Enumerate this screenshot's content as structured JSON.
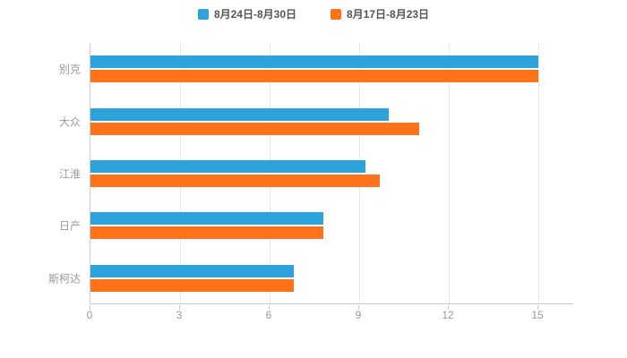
{
  "chart_data": {
    "type": "bar",
    "orientation": "horizontal",
    "title": "",
    "xlabel": "",
    "ylabel": "",
    "categories": [
      "别克",
      "大众",
      "江淮",
      "日产",
      "斯柯达"
    ],
    "series": [
      {
        "name": "8月24日-8月30日",
        "color": "#2DA3DC",
        "values": [
          15,
          10,
          9.2,
          7.8,
          6.8
        ]
      },
      {
        "name": "8月17日-8月23日",
        "color": "#FF7219",
        "values": [
          15,
          11,
          9.7,
          7.8,
          6.8
        ]
      }
    ],
    "xlim": [
      0,
      15
    ],
    "xticks": [
      0,
      3,
      6,
      9,
      12,
      15
    ],
    "legend_position": "top",
    "grid": true
  },
  "colors": {
    "background": "#ffffff",
    "axis_line": "#cccccc",
    "gridline": "#e8e8e8",
    "tick_label": "#999999",
    "category_label": "#999999",
    "legend_label": "#555555"
  }
}
